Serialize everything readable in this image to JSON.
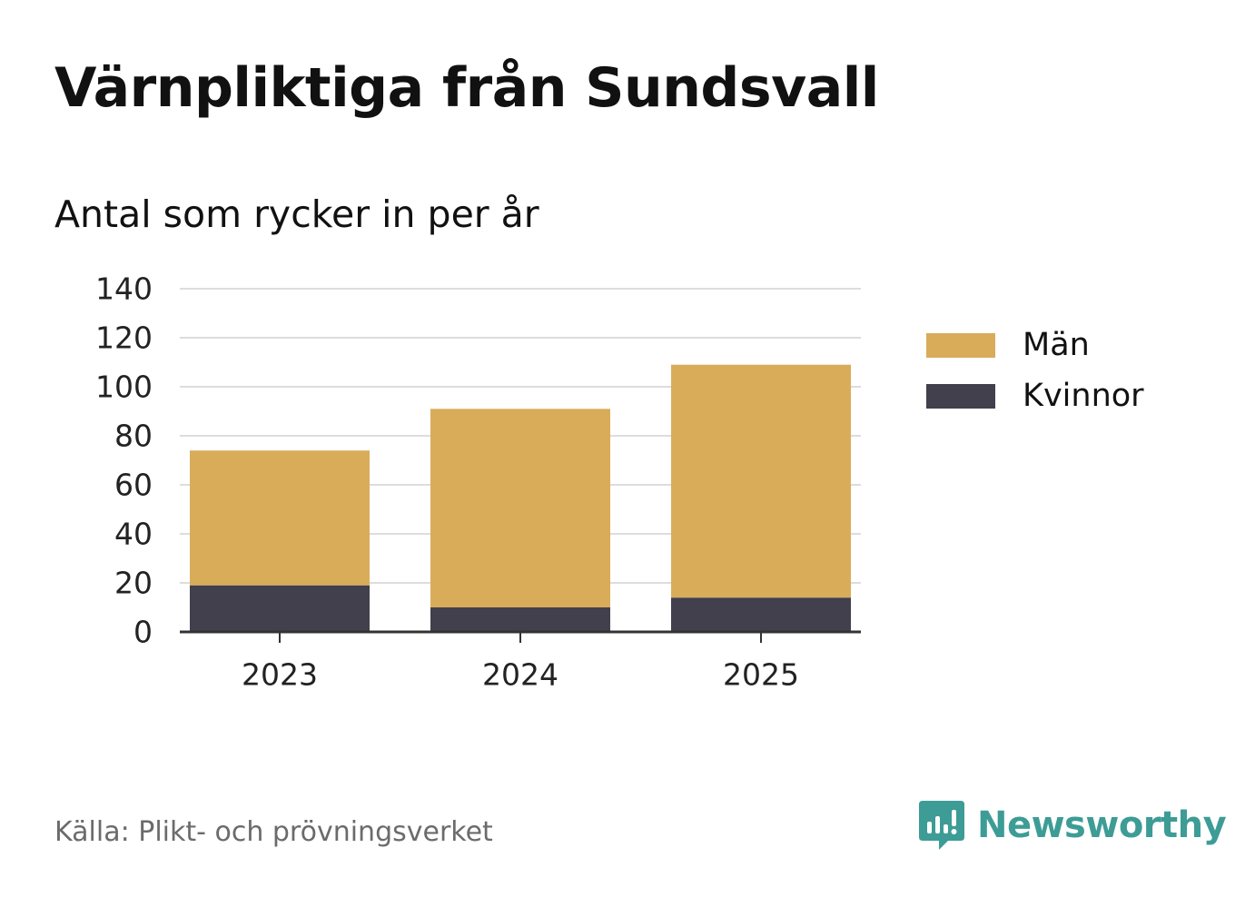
{
  "title": "Värnpliktiga från Sundsvall",
  "subtitle": "Antal som rycker in per år",
  "source": "Källa: Plikt- och prövningsverket",
  "brand": {
    "name": "Newsworthy",
    "color": "#3d9c96"
  },
  "chart_data": {
    "type": "bar",
    "stacked": true,
    "title": "Värnpliktiga från Sundsvall",
    "subtitle": "Antal som rycker in per år",
    "xlabel": "",
    "ylabel": "",
    "categories": [
      "2023",
      "2024",
      "2025"
    ],
    "series": [
      {
        "name": "Kvinnor",
        "color": "#42404d",
        "values": [
          19,
          10,
          14
        ]
      },
      {
        "name": "Män",
        "color": "#d9ac5a",
        "values": [
          55,
          81,
          95
        ]
      }
    ],
    "ylim": [
      0,
      140
    ],
    "yticks": [
      "0",
      "20",
      "40",
      "60",
      "80",
      "100",
      "120",
      "140"
    ],
    "grid": true,
    "legend_position": "right",
    "legend_order": [
      "Män",
      "Kvinnor"
    ]
  }
}
